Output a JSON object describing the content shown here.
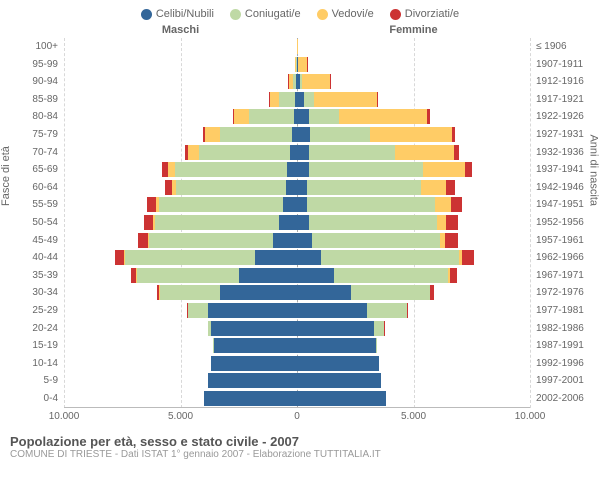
{
  "chart": {
    "type": "population-pyramid",
    "categories": [
      "Celibi/Nubili",
      "Coniugati/e",
      "Vedovi/e",
      "Divorziati/e"
    ],
    "colors": {
      "celibi": "#336699",
      "coniugati": "#bfd9a5",
      "vedovi": "#ffcc66",
      "divorziati": "#cc3333",
      "grid": "#d8d8d8",
      "center": "#aaaaaa",
      "background": "#ffffff"
    },
    "col_left": "Maschi",
    "col_right": "Femmine",
    "y_left_title": "Fasce di età",
    "y_right_title": "Anni di nascita",
    "xticks": [
      "10.000",
      "5.000",
      "0",
      "5.000",
      "10.000"
    ],
    "xmax": 10000,
    "age_groups": [
      {
        "label": "100+",
        "birth": "≤ 1906",
        "m": {
          "c": 2,
          "co": 0,
          "v": 5,
          "d": 0
        },
        "f": {
          "c": 5,
          "co": 0,
          "v": 50,
          "d": 0
        }
      },
      {
        "label": "95-99",
        "birth": "1907-1911",
        "m": {
          "c": 10,
          "co": 20,
          "v": 40,
          "d": 2
        },
        "f": {
          "c": 40,
          "co": 20,
          "v": 350,
          "d": 5
        }
      },
      {
        "label": "90-94",
        "birth": "1912-1916",
        "m": {
          "c": 30,
          "co": 150,
          "v": 180,
          "d": 8
        },
        "f": {
          "c": 140,
          "co": 90,
          "v": 1200,
          "d": 15
        }
      },
      {
        "label": "85-89",
        "birth": "1917-1921",
        "m": {
          "c": 70,
          "co": 700,
          "v": 420,
          "d": 20
        },
        "f": {
          "c": 320,
          "co": 400,
          "v": 2700,
          "d": 40
        }
      },
      {
        "label": "80-84",
        "birth": "1922-1926",
        "m": {
          "c": 140,
          "co": 1900,
          "v": 650,
          "d": 50
        },
        "f": {
          "c": 500,
          "co": 1300,
          "v": 3800,
          "d": 90
        }
      },
      {
        "label": "75-79",
        "birth": "1927-1931",
        "m": {
          "c": 220,
          "co": 3100,
          "v": 620,
          "d": 90
        },
        "f": {
          "c": 550,
          "co": 2600,
          "v": 3500,
          "d": 150
        }
      },
      {
        "label": "70-74",
        "birth": "1932-1936",
        "m": {
          "c": 320,
          "co": 3900,
          "v": 450,
          "d": 150
        },
        "f": {
          "c": 520,
          "co": 3700,
          "v": 2500,
          "d": 220
        }
      },
      {
        "label": "65-69",
        "birth": "1937-1941",
        "m": {
          "c": 420,
          "co": 4800,
          "v": 320,
          "d": 240
        },
        "f": {
          "c": 500,
          "co": 4900,
          "v": 1800,
          "d": 320
        }
      },
      {
        "label": "60-64",
        "birth": "1942-1946",
        "m": {
          "c": 480,
          "co": 4700,
          "v": 200,
          "d": 300
        },
        "f": {
          "c": 430,
          "co": 4900,
          "v": 1050,
          "d": 400
        }
      },
      {
        "label": "55-59",
        "birth": "1947-1951",
        "m": {
          "c": 620,
          "co": 5300,
          "v": 130,
          "d": 400
        },
        "f": {
          "c": 440,
          "co": 5500,
          "v": 650,
          "d": 500
        }
      },
      {
        "label": "50-54",
        "birth": "1952-1956",
        "m": {
          "c": 780,
          "co": 5300,
          "v": 80,
          "d": 420
        },
        "f": {
          "c": 500,
          "co": 5500,
          "v": 380,
          "d": 550
        }
      },
      {
        "label": "45-49",
        "birth": "1957-1961",
        "m": {
          "c": 1050,
          "co": 5300,
          "v": 50,
          "d": 420
        },
        "f": {
          "c": 650,
          "co": 5500,
          "v": 220,
          "d": 550
        }
      },
      {
        "label": "40-44",
        "birth": "1962-1966",
        "m": {
          "c": 1800,
          "co": 5600,
          "v": 30,
          "d": 380
        },
        "f": {
          "c": 1050,
          "co": 5900,
          "v": 130,
          "d": 500
        }
      },
      {
        "label": "35-39",
        "birth": "1967-1971",
        "m": {
          "c": 2500,
          "co": 4400,
          "v": 15,
          "d": 220
        },
        "f": {
          "c": 1600,
          "co": 4900,
          "v": 60,
          "d": 320
        }
      },
      {
        "label": "30-34",
        "birth": "1972-1976",
        "m": {
          "c": 3300,
          "co": 2600,
          "v": 5,
          "d": 100
        },
        "f": {
          "c": 2300,
          "co": 3400,
          "v": 25,
          "d": 170
        }
      },
      {
        "label": "25-29",
        "birth": "1977-1981",
        "m": {
          "c": 3800,
          "co": 900,
          "v": 2,
          "d": 25
        },
        "f": {
          "c": 3000,
          "co": 1700,
          "v": 8,
          "d": 55
        }
      },
      {
        "label": "20-24",
        "birth": "1982-1986",
        "m": {
          "c": 3700,
          "co": 120,
          "v": 0,
          "d": 3
        },
        "f": {
          "c": 3300,
          "co": 450,
          "v": 1,
          "d": 10
        }
      },
      {
        "label": "15-19",
        "birth": "1987-1991",
        "m": {
          "c": 3600,
          "co": 5,
          "v": 0,
          "d": 0
        },
        "f": {
          "c": 3400,
          "co": 30,
          "v": 0,
          "d": 0
        }
      },
      {
        "label": "10-14",
        "birth": "1992-1996",
        "m": {
          "c": 3700,
          "co": 0,
          "v": 0,
          "d": 0
        },
        "f": {
          "c": 3500,
          "co": 0,
          "v": 0,
          "d": 0
        }
      },
      {
        "label": "5-9",
        "birth": "1997-2001",
        "m": {
          "c": 3800,
          "co": 0,
          "v": 0,
          "d": 0
        },
        "f": {
          "c": 3600,
          "co": 0,
          "v": 0,
          "d": 0
        }
      },
      {
        "label": "0-4",
        "birth": "2002-2006",
        "m": {
          "c": 4000,
          "co": 0,
          "v": 0,
          "d": 0
        },
        "f": {
          "c": 3800,
          "co": 0,
          "v": 0,
          "d": 0
        }
      }
    ],
    "footer_title": "Popolazione per età, sesso e stato civile - 2007",
    "footer_sub": "COMUNE DI TRIESTE - Dati ISTAT 1° gennaio 2007 - Elaborazione TUTTITALIA.IT"
  }
}
